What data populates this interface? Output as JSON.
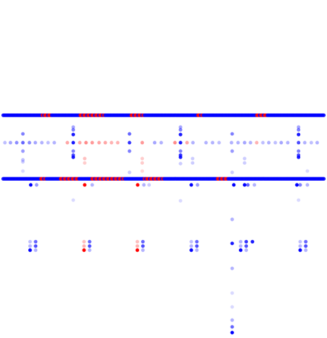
{
  "chart_data": {
    "type": "scatter",
    "title": "",
    "xlabel": "",
    "ylabel": "",
    "grid": false,
    "legend": "none",
    "xlim": [
      0,
      100
    ],
    "ylim": [
      0,
      100
    ],
    "colors": {
      "positive": "#ff0000",
      "negative": "#0000ff"
    },
    "bands": [
      {
        "name": "upper-band",
        "y": 65.9,
        "x_start": 1,
        "x_end": 99,
        "spacing": 0.4,
        "red_ranges": [
          [
            13,
            16
          ],
          [
            24,
            32
          ],
          [
            40,
            44
          ],
          [
            60,
            62
          ],
          [
            78,
            82
          ]
        ]
      },
      {
        "name": "lower-band",
        "y": 47.1,
        "x_start": 1,
        "x_end": 99,
        "spacing": 0.4,
        "red_ranges": [
          [
            12,
            14
          ],
          [
            18,
            24
          ],
          [
            28,
            38
          ],
          [
            44,
            50
          ],
          [
            66,
            70
          ]
        ]
      }
    ],
    "middle_row": {
      "y": 57.8,
      "points": [
        {
          "x": 1.5,
          "v": -0.25
        },
        {
          "x": 3.2,
          "v": -0.35
        },
        {
          "x": 5.1,
          "v": -0.45
        },
        {
          "x": 7.0,
          "v": -0.6
        },
        {
          "x": 9.0,
          "v": -0.45
        },
        {
          "x": 10.8,
          "v": -0.35
        },
        {
          "x": 12.8,
          "v": -0.3
        },
        {
          "x": 14.7,
          "v": -0.25
        },
        {
          "x": 16.6,
          "v": -0.3
        },
        {
          "x": 20.6,
          "v": 0.35
        },
        {
          "x": 22.4,
          "v": -0.9
        },
        {
          "x": 24.4,
          "v": 0.35
        },
        {
          "x": 26.3,
          "v": 0.45
        },
        {
          "x": 28.2,
          "v": 0.4
        },
        {
          "x": 30.3,
          "v": 0.35
        },
        {
          "x": 32.2,
          "v": 0.35
        },
        {
          "x": 34.1,
          "v": 0.3
        },
        {
          "x": 36.0,
          "v": 0.3
        },
        {
          "x": 39.6,
          "v": -0.8
        },
        {
          "x": 43.5,
          "v": 0.4
        },
        {
          "x": 47.3,
          "v": -0.35
        },
        {
          "x": 49.3,
          "v": -0.3
        },
        {
          "x": 53.5,
          "v": 0.45
        },
        {
          "x": 55.2,
          "v": -0.9
        },
        {
          "x": 57.2,
          "v": 0.35
        },
        {
          "x": 59.0,
          "v": -0.3
        },
        {
          "x": 63.0,
          "v": -0.3
        },
        {
          "x": 65.0,
          "v": -0.3
        },
        {
          "x": 67.0,
          "v": -0.25
        },
        {
          "x": 70.8,
          "v": -0.3
        },
        {
          "x": 72.8,
          "v": -0.3
        },
        {
          "x": 74.8,
          "v": -0.35
        },
        {
          "x": 76.6,
          "v": -0.3
        },
        {
          "x": 78.5,
          "v": 0.3
        },
        {
          "x": 80.4,
          "v": -0.25
        },
        {
          "x": 82.2,
          "v": -0.3
        },
        {
          "x": 84.2,
          "v": -0.25
        },
        {
          "x": 86.0,
          "v": -0.35
        },
        {
          "x": 88.0,
          "v": -0.3
        },
        {
          "x": 91.3,
          "v": -0.7
        },
        {
          "x": 93.2,
          "v": -0.3
        },
        {
          "x": 95.2,
          "v": -0.25
        },
        {
          "x": 97.0,
          "v": -0.3
        }
      ]
    },
    "columns": [
      {
        "x": 7.0,
        "points": [
          {
            "y": 60.4,
            "v": -0.5
          },
          {
            "y": 55.3,
            "v": -0.4
          },
          {
            "y": 52.7,
            "v": -0.25
          },
          {
            "y": 52.1,
            "v": -0.2
          },
          {
            "y": 49.4,
            "v": -0.15
          }
        ]
      },
      {
        "x": 22.4,
        "points": [
          {
            "y": 62.4,
            "v": -0.35
          },
          {
            "y": 61.6,
            "v": -0.5
          },
          {
            "y": 60.2,
            "v": -0.9
          },
          {
            "y": 55.3,
            "v": -0.5
          },
          {
            "y": 54.1,
            "v": -0.7
          },
          {
            "y": 53.5,
            "v": -0.9
          },
          {
            "y": 40.8,
            "v": -0.15
          }
        ]
      },
      {
        "x": 25.9,
        "points": [
          {
            "y": 53.1,
            "v": 0.25
          },
          {
            "y": 51.8,
            "v": 0.2
          }
        ]
      },
      {
        "x": 39.6,
        "points": [
          {
            "y": 60.4,
            "v": -0.6
          },
          {
            "y": 55.3,
            "v": -0.5
          },
          {
            "y": 49.0,
            "v": -0.2
          }
        ]
      },
      {
        "x": 43.5,
        "points": [
          {
            "y": 53.1,
            "v": 0.2
          },
          {
            "y": 51.8,
            "v": 0.2
          },
          {
            "y": 49.4,
            "v": 0.15
          }
        ]
      },
      {
        "x": 55.2,
        "points": [
          {
            "y": 62.4,
            "v": -0.35
          },
          {
            "y": 61.6,
            "v": -0.5
          },
          {
            "y": 60.2,
            "v": -0.9
          },
          {
            "y": 55.3,
            "v": -0.5
          },
          {
            "y": 54.1,
            "v": -0.8
          },
          {
            "y": 53.5,
            "v": -0.9
          },
          {
            "y": 51.6,
            "v": -0.2
          },
          {
            "y": 40.6,
            "v": -0.15
          }
        ]
      },
      {
        "x": 58.9,
        "points": [
          {
            "y": 53.1,
            "v": -0.2
          },
          {
            "y": 51.8,
            "v": -0.2
          }
        ]
      },
      {
        "x": 71.0,
        "points": [
          {
            "y": 60.4,
            "v": -0.5
          },
          {
            "y": 55.3,
            "v": -0.4
          },
          {
            "y": 49.0,
            "v": -0.2
          },
          {
            "y": 35.1,
            "v": -0.3
          },
          {
            "y": 28.0,
            "v": -0.9
          },
          {
            "y": 20.6,
            "v": -0.3
          },
          {
            "y": 13.3,
            "v": -0.15
          },
          {
            "y": 9.2,
            "v": -0.15
          },
          {
            "y": 5.3,
            "v": -0.3
          },
          {
            "y": 3.3,
            "v": -0.6
          },
          {
            "y": 1.6,
            "v": -1.0
          }
        ]
      },
      {
        "x": 74.8,
        "points": [
          {
            "y": 53.1,
            "v": -0.2
          },
          {
            "y": 51.8,
            "v": -0.2
          }
        ]
      },
      {
        "x": 91.3,
        "points": [
          {
            "y": 62.4,
            "v": -0.35
          },
          {
            "y": 61.6,
            "v": -0.5
          },
          {
            "y": 60.2,
            "v": -0.9
          },
          {
            "y": 55.3,
            "v": -0.5
          },
          {
            "y": 54.1,
            "v": -0.7
          },
          {
            "y": 53.5,
            "v": -0.9
          },
          {
            "y": 40.8,
            "v": -0.15
          }
        ]
      },
      {
        "x": 94.0,
        "points": [
          {
            "y": 49.4,
            "v": -0.15
          }
        ]
      }
    ],
    "below_band_row": {
      "y": 45.3,
      "points": [
        {
          "x": 9.4,
          "v": -1.0
        },
        {
          "x": 11.2,
          "v": -0.4
        },
        {
          "x": 25.9,
          "v": 1.0
        },
        {
          "x": 28.2,
          "v": -0.3
        },
        {
          "x": 42.1,
          "v": 1.0
        },
        {
          "x": 44.0,
          "v": -0.3
        },
        {
          "x": 45.6,
          "v": -0.2
        },
        {
          "x": 58.5,
          "v": -1.0
        },
        {
          "x": 60.4,
          "v": -0.4
        },
        {
          "x": 71.5,
          "v": -1.0
        },
        {
          "x": 74.8,
          "v": -1.0
        },
        {
          "x": 75.8,
          "v": -0.6
        },
        {
          "x": 77.8,
          "v": -0.3
        },
        {
          "x": 90.8,
          "v": -1.0
        },
        {
          "x": 91.8,
          "v": -0.5
        },
        {
          "x": 94.0,
          "v": -0.3
        }
      ]
    },
    "clusters": [
      {
        "cx": 10.0,
        "y": 26.0,
        "points": [
          {
            "dx": -0.8,
            "dy": 2.5,
            "v": -0.25
          },
          {
            "dx": 0.9,
            "dy": 2.5,
            "v": -0.6
          },
          {
            "dx": -0.8,
            "dy": 1.2,
            "v": -0.3
          },
          {
            "dx": 0.9,
            "dy": 1.2,
            "v": -0.7
          },
          {
            "dx": -0.8,
            "dy": 0.0,
            "v": -1.0
          },
          {
            "dx": 0.9,
            "dy": 0.0,
            "v": -0.3
          }
        ]
      },
      {
        "cx": 26.5,
        "y": 26.0,
        "points": [
          {
            "dx": -0.8,
            "dy": 2.5,
            "v": 0.25
          },
          {
            "dx": 0.9,
            "dy": 2.5,
            "v": -0.6
          },
          {
            "dx": -0.8,
            "dy": 1.2,
            "v": 0.3
          },
          {
            "dx": 0.9,
            "dy": 1.2,
            "v": -0.7
          },
          {
            "dx": -0.8,
            "dy": 0.0,
            "v": 1.0
          },
          {
            "dx": 0.9,
            "dy": 0.0,
            "v": -0.3
          }
        ]
      },
      {
        "cx": 42.8,
        "y": 26.0,
        "points": [
          {
            "dx": -0.8,
            "dy": 2.5,
            "v": 0.25
          },
          {
            "dx": 0.9,
            "dy": 2.5,
            "v": -0.6
          },
          {
            "dx": -0.8,
            "dy": 1.2,
            "v": 0.3
          },
          {
            "dx": 0.9,
            "dy": 1.2,
            "v": -0.7
          },
          {
            "dx": -0.8,
            "dy": 0.0,
            "v": 1.0
          },
          {
            "dx": 0.9,
            "dy": 0.0,
            "v": -0.3
          }
        ]
      },
      {
        "cx": 59.3,
        "y": 26.0,
        "points": [
          {
            "dx": -0.8,
            "dy": 2.5,
            "v": -0.25
          },
          {
            "dx": 0.9,
            "dy": 2.5,
            "v": -0.6
          },
          {
            "dx": -0.8,
            "dy": 1.2,
            "v": -0.3
          },
          {
            "dx": 0.9,
            "dy": 1.2,
            "v": -0.7
          },
          {
            "dx": -0.8,
            "dy": 0.0,
            "v": -1.0
          },
          {
            "dx": 0.9,
            "dy": 0.0,
            "v": -0.3
          }
        ]
      },
      {
        "cx": 74.4,
        "y": 26.0,
        "points": [
          {
            "dx": -0.8,
            "dy": 2.5,
            "v": -0.3
          },
          {
            "dx": 0.9,
            "dy": 2.5,
            "v": -0.8
          },
          {
            "dx": -0.8,
            "dy": 1.2,
            "v": -0.3
          },
          {
            "dx": 0.9,
            "dy": 1.2,
            "v": -0.7
          },
          {
            "dx": -0.8,
            "dy": 0.0,
            "v": -1.0
          },
          {
            "dx": 0.9,
            "dy": 0.0,
            "v": -0.3
          },
          {
            "dx": 2.8,
            "dy": 2.5,
            "v": -0.9
          }
        ]
      },
      {
        "cx": 92.6,
        "y": 26.0,
        "points": [
          {
            "dx": -0.8,
            "dy": 2.5,
            "v": -0.25
          },
          {
            "dx": 0.9,
            "dy": 2.5,
            "v": -0.6
          },
          {
            "dx": -0.8,
            "dy": 1.2,
            "v": -0.3
          },
          {
            "dx": 0.9,
            "dy": 1.2,
            "v": -0.7
          },
          {
            "dx": -0.8,
            "dy": 0.0,
            "v": -1.0
          },
          {
            "dx": 0.9,
            "dy": 0.0,
            "v": -0.3
          }
        ]
      }
    ]
  }
}
